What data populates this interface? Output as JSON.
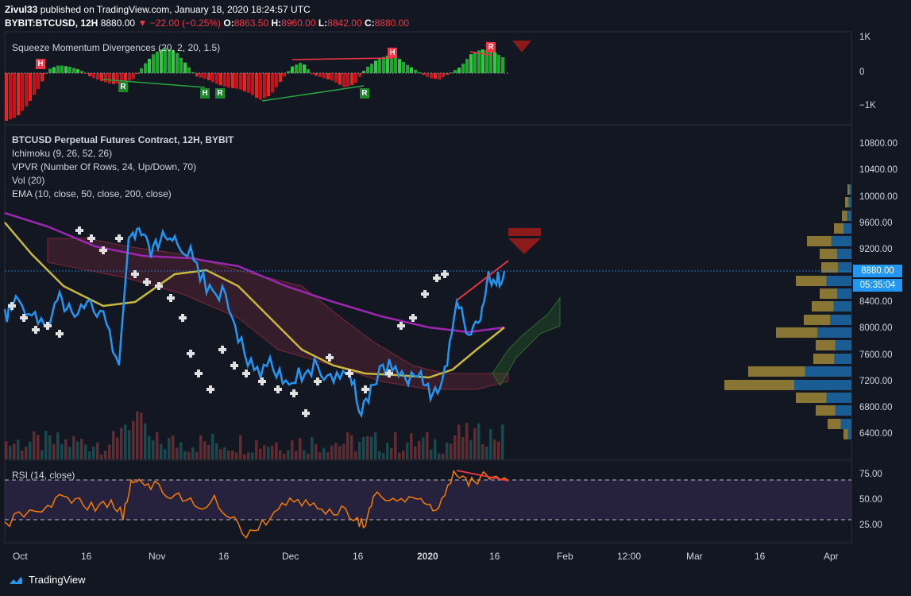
{
  "header": {
    "user": "Zivul33",
    "published": "published on TradingView.com, January 18, 2020 18:24:57 UTC",
    "symbol": "BYBIT:BTCUSD, 12H",
    "price": "8880.00",
    "change": "▼ −22.00 (−0.25%)",
    "o_label": "O:",
    "o_val": "8863.50",
    "h_label": "H:",
    "h_val": "8960.00",
    "l_label": "L:",
    "l_val": "8842.00",
    "c_label": "C:",
    "c_val": "8880.00"
  },
  "squeeze": {
    "legend": "Squeeze Momentum Divergences (20, 2, 20, 1.5)",
    "axis": [
      "1K",
      "0",
      "−1K"
    ],
    "markers": [
      "H",
      "R",
      "H",
      "R",
      "H",
      "R",
      "R"
    ]
  },
  "main": {
    "legend": [
      "BTCUSD Perpetual Futures Contract, 12H, BYBIT",
      "Ichimoku (9, 26, 52, 26)",
      "VPVR (Number Of Rows, 24, Up/Down, 70)",
      "Vol (20)",
      "EMA (10, close, 50, close, 200, close)"
    ],
    "axis": [
      "10800.00",
      "10400.00",
      "10000.00",
      "9600.00",
      "9200.00",
      "8400.00",
      "8000.00",
      "7600.00",
      "7200.00",
      "6800.00",
      "6400.00"
    ],
    "price_badge": "8880.00",
    "countdown_badge": "05:35:04"
  },
  "rsi": {
    "legend": "RSI (14, close)",
    "axis": [
      "75.00",
      "50.00",
      "25.00"
    ]
  },
  "xaxis": [
    "Oct",
    "16",
    "Nov",
    "16",
    "Dec",
    "16",
    "2020",
    "16",
    "Feb",
    "12:00",
    "Mar",
    "16",
    "Apr"
  ],
  "footer": {
    "brand": "TradingView"
  },
  "colors": {
    "background": "#131722",
    "price_line": "#2196f3",
    "ema_yellow": "#c9b93a",
    "ema_purple": "#9c27b0",
    "rsi_line": "#f57c00",
    "down_red": "#f23645",
    "up_green": "#26a69a"
  }
}
